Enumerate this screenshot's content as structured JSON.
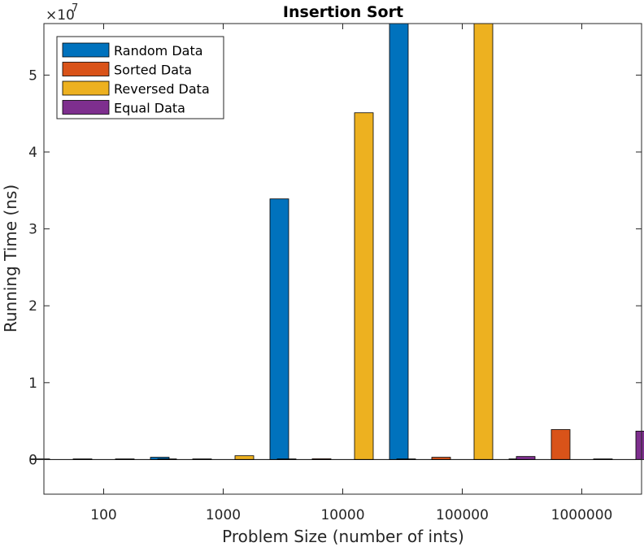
{
  "chart_data": {
    "type": "bar",
    "title": "Insertion Sort",
    "xlabel": "Problem Size (number of ints)",
    "ylabel": "Running Time (ns)",
    "exponent_base": "×10",
    "exponent_power": "7",
    "categories": [
      "100",
      "1000",
      "10000",
      "100000",
      "1000000"
    ],
    "ylim": [
      -4500000,
      56700000
    ],
    "y_tick_values": [
      0,
      10000000,
      20000000,
      30000000,
      40000000,
      50000000
    ],
    "y_tick_labels": [
      "0",
      "1",
      "2",
      "3",
      "4",
      "5"
    ],
    "grid": false,
    "legend_position": "top-left",
    "series": [
      {
        "name": "Random Data",
        "color": "#0072BD",
        "values": [
          4000,
          300000,
          33900000,
          56700000,
          0
        ]
      },
      {
        "name": "Sorted Data",
        "color": "#D95319",
        "values": [
          500,
          5000,
          100000,
          300000,
          3900000
        ]
      },
      {
        "name": "Reversed Data",
        "color": "#EDB120",
        "values": [
          6000,
          500000,
          45100000,
          56700000,
          0
        ]
      },
      {
        "name": "Equal Data",
        "color": "#7E2F8E",
        "values": [
          500,
          5000,
          20000,
          400000,
          3700000
        ]
      }
    ]
  }
}
